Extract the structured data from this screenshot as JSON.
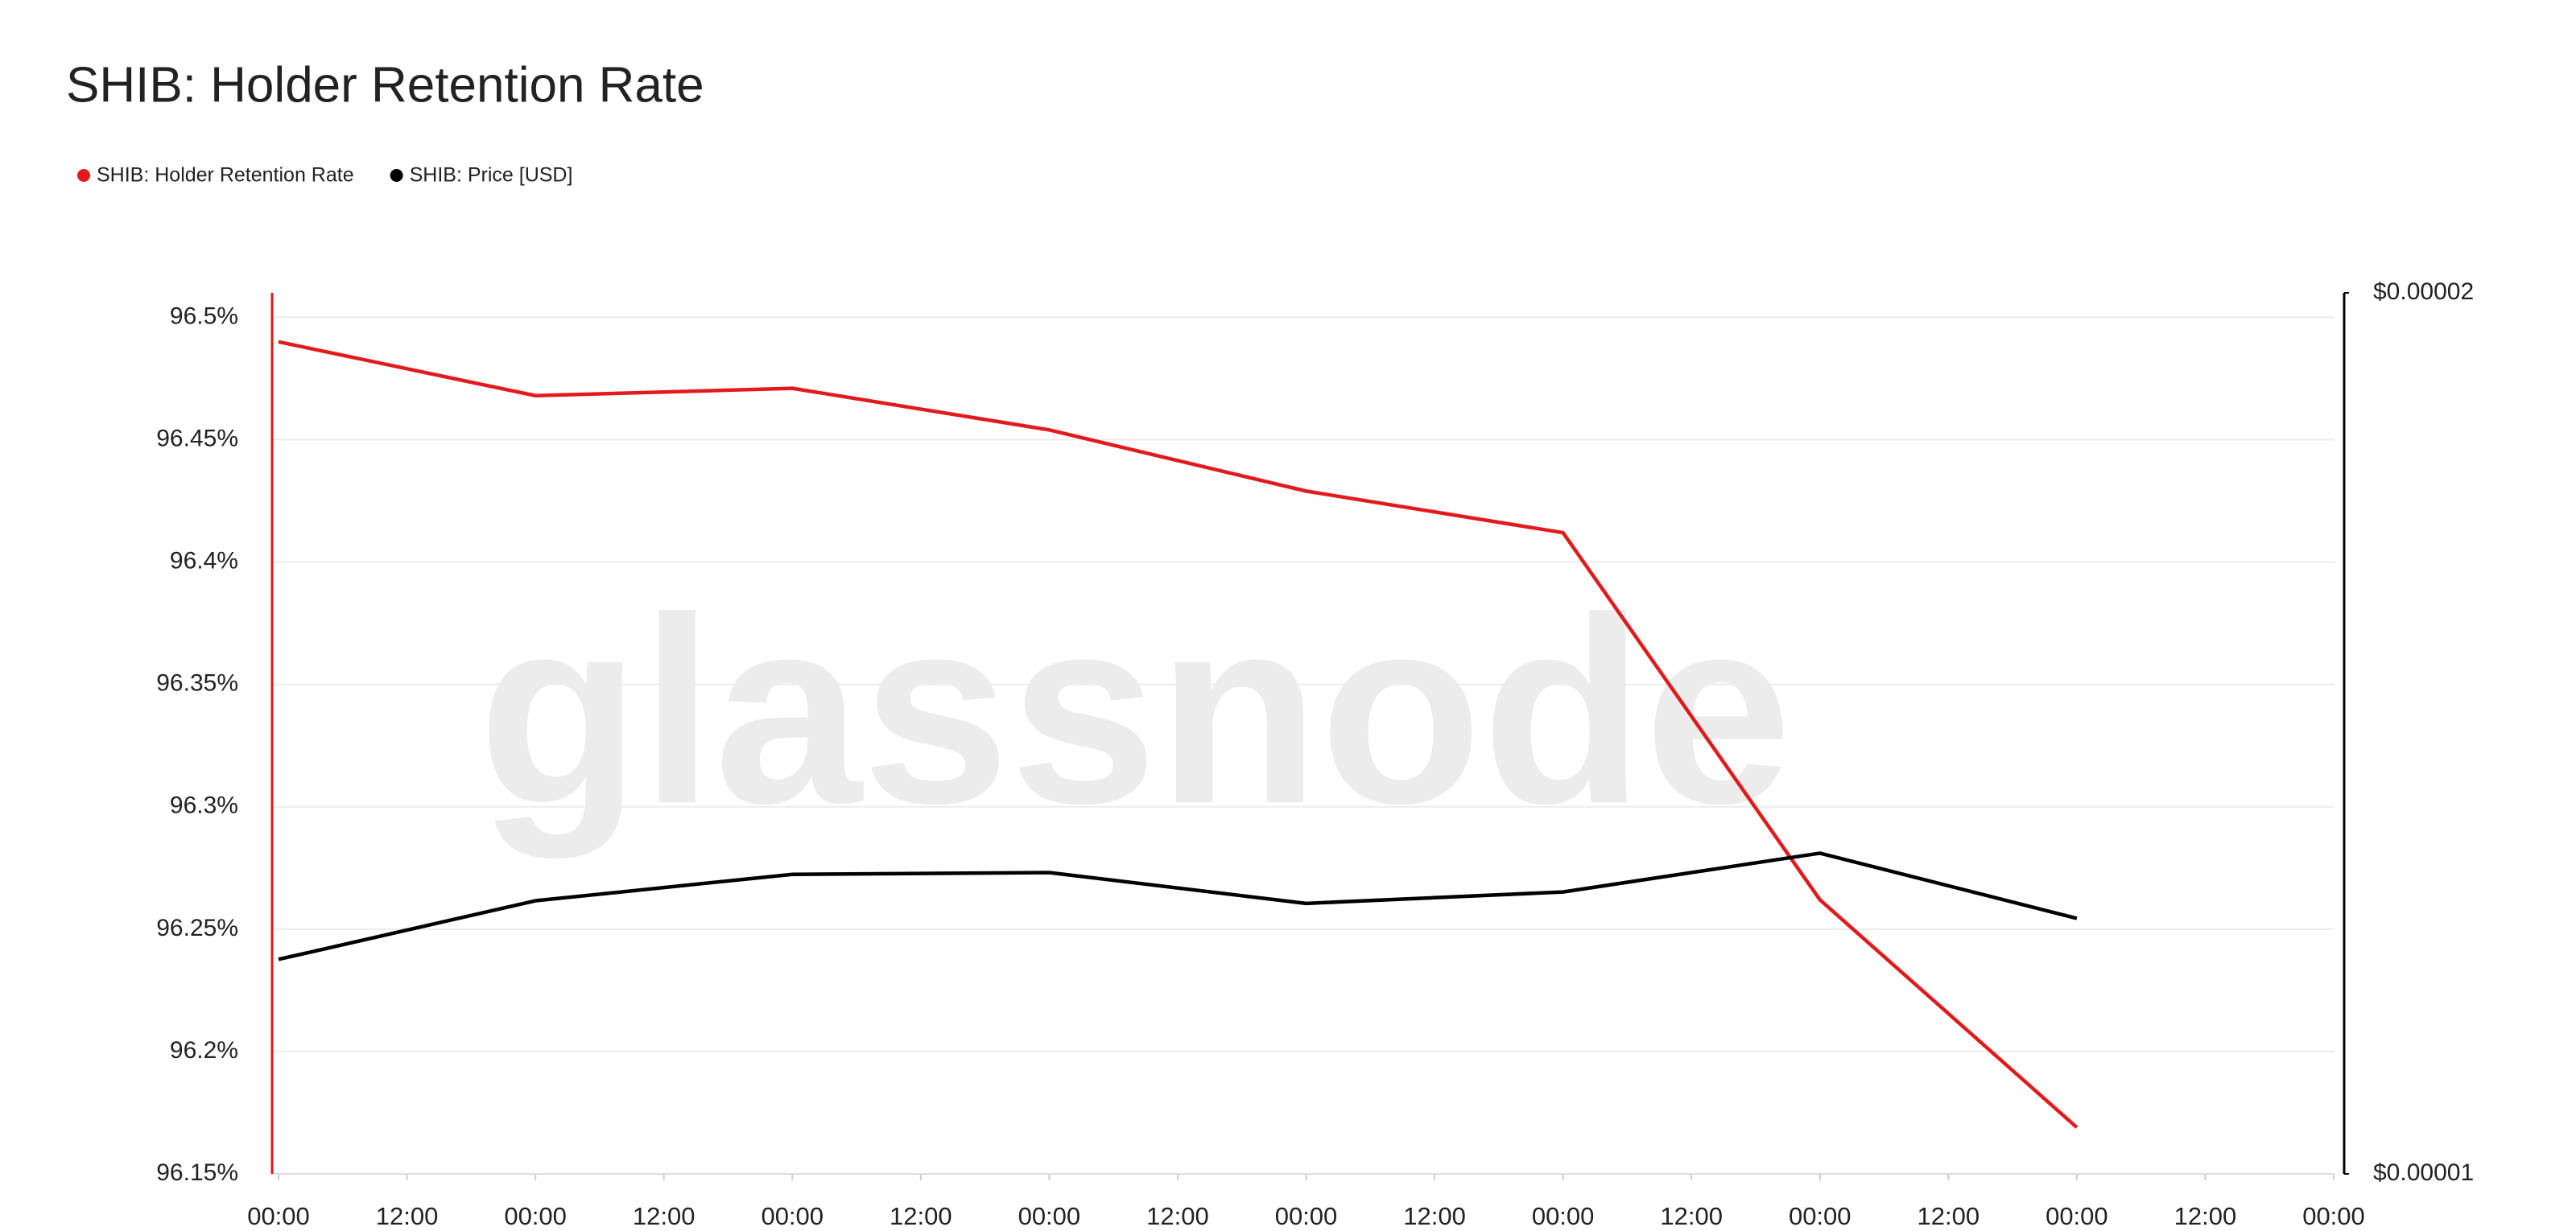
{
  "chart_data": {
    "type": "line",
    "title": "SHIB: Holder Retention Rate",
    "watermark": "glassnode",
    "x": [
      0,
      24,
      48,
      72,
      96,
      120,
      144,
      168
    ],
    "xlim": [
      0,
      192
    ],
    "xticks": [
      {
        "value": 0,
        "label": "00:00"
      },
      {
        "value": 12,
        "label": "12:00"
      },
      {
        "value": 24,
        "label": "00:00"
      },
      {
        "value": 36,
        "label": "12:00"
      },
      {
        "value": 48,
        "label": "00:00"
      },
      {
        "value": 60,
        "label": "12:00"
      },
      {
        "value": 72,
        "label": "00:00"
      },
      {
        "value": 84,
        "label": "12:00"
      },
      {
        "value": 96,
        "label": "00:00"
      },
      {
        "value": 108,
        "label": "12:00"
      },
      {
        "value": 120,
        "label": "00:00"
      },
      {
        "value": 132,
        "label": "12:00"
      },
      {
        "value": 144,
        "label": "00:00"
      },
      {
        "value": 156,
        "label": "12:00"
      },
      {
        "value": 168,
        "label": "00:00"
      },
      {
        "value": 180,
        "label": "12:00"
      },
      {
        "value": 192,
        "label": "00:00"
      }
    ],
    "ylim": [
      96.15,
      96.51
    ],
    "yticks": [
      {
        "value": 96.15,
        "label": "96.15%"
      },
      {
        "value": 96.2,
        "label": "96.2%"
      },
      {
        "value": 96.25,
        "label": "96.25%"
      },
      {
        "value": 96.3,
        "label": "96.3%"
      },
      {
        "value": 96.35,
        "label": "96.35%"
      },
      {
        "value": 96.4,
        "label": "96.4%"
      },
      {
        "value": 96.45,
        "label": "96.45%"
      },
      {
        "value": 96.5,
        "label": "96.5%"
      }
    ],
    "y2lim": [
      1e-05,
      2e-05
    ],
    "y2ticks": [
      {
        "value": 1e-05,
        "label": "$0.00001"
      },
      {
        "value": 2e-05,
        "label": "$0.00002"
      }
    ],
    "grid": true,
    "legend": "top-left",
    "series": [
      {
        "name": "SHIB: Holder Retention Rate",
        "color": "#e31a1c",
        "values": [
          96.49,
          96.468,
          96.471,
          96.454,
          96.429,
          96.412,
          96.262,
          96.169
        ]
      },
      {
        "name": "SHIB: Price [USD]",
        "color": "#000000",
        "axis": "y2",
        "values": [
          1.2435e-05,
          1.31e-05,
          1.34e-05,
          1.342e-05,
          1.307e-05,
          1.32e-05,
          1.364e-05,
          1.29e-05
        ]
      }
    ]
  }
}
